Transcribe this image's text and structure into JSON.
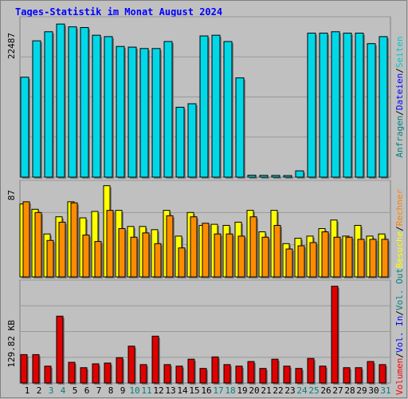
{
  "title": "Tages-Statistik im Monat August 2024",
  "colors": {
    "background": "#c0c0c0",
    "frame": "#808080",
    "title": "#0000ff",
    "grid": "#888888",
    "anfragen": "#00d8e8",
    "dateien": "#008c8c",
    "seiten": "#00e0f0",
    "besuche": "#ffff00",
    "rechner": "#ff8c00",
    "volumen": "#e00000",
    "label_blue": "#0000ff",
    "label_teal": "#008080",
    "label_red": "#ff0000",
    "label_orange": "#ff8000",
    "weekend_day": "#008080",
    "weekday_day": "#000000"
  },
  "chart_data": [
    {
      "type": "bar",
      "panel": "requests",
      "ylabel_max": "22487",
      "ymax": 22487,
      "right_labels": [
        {
          "text": "Anfragen",
          "color": "#008080"
        },
        {
          "text": "/",
          "color": "#000000"
        },
        {
          "text": "Dateien",
          "color": "#0000ff"
        },
        {
          "text": "/",
          "color": "#000000"
        },
        {
          "text": "Seiten",
          "color": "#00c8c8"
        }
      ],
      "categories": [
        "1",
        "2",
        "3",
        "4",
        "5",
        "6",
        "7",
        "8",
        "9",
        "10",
        "11",
        "12",
        "13",
        "14",
        "15",
        "16",
        "17",
        "18",
        "19",
        "20",
        "21",
        "22",
        "23",
        "24",
        "25",
        "26",
        "27",
        "28",
        "29",
        "30",
        "31"
      ],
      "series": [
        {
          "name": "Anfragen",
          "values": [
            14300,
            19500,
            20800,
            21900,
            21500,
            21400,
            20300,
            20100,
            18700,
            18600,
            18400,
            18400,
            19400,
            10000,
            10500,
            20200,
            20300,
            19400,
            14200,
            280,
            260,
            250,
            230,
            900,
            20600,
            20600,
            20800,
            20600,
            20600,
            19100,
            20100
          ]
        },
        {
          "name": "Dateien",
          "values": [
            14300,
            19500,
            20800,
            21900,
            21500,
            21400,
            20300,
            20100,
            18700,
            18600,
            18400,
            18400,
            19400,
            10000,
            10500,
            20200,
            20300,
            19400,
            14200,
            280,
            260,
            250,
            230,
            900,
            20600,
            20600,
            20800,
            20600,
            20600,
            19100,
            20100
          ]
        }
      ]
    },
    {
      "type": "bar",
      "panel": "visits",
      "ylabel_max": "87",
      "ymax": 87,
      "right_labels": [
        {
          "text": "Besuche",
          "color": "#ffff00"
        },
        {
          "text": "/",
          "color": "#000000"
        },
        {
          "text": "Rechner",
          "color": "#ff8000"
        }
      ],
      "categories": [
        "1",
        "2",
        "3",
        "4",
        "5",
        "6",
        "7",
        "8",
        "9",
        "10",
        "11",
        "12",
        "13",
        "14",
        "15",
        "16",
        "17",
        "18",
        "19",
        "20",
        "21",
        "22",
        "23",
        "24",
        "25",
        "26",
        "27",
        "28",
        "29",
        "30",
        "31"
      ],
      "series": [
        {
          "name": "Besuche",
          "values": [
            68,
            63,
            40,
            56,
            70,
            55,
            61,
            85,
            62,
            47,
            47,
            44,
            62,
            38,
            60,
            48,
            49,
            48,
            51,
            62,
            42,
            62,
            31,
            36,
            38,
            45,
            53,
            38,
            48,
            38,
            40
          ]
        },
        {
          "name": "Rechner",
          "values": [
            70,
            60,
            34,
            51,
            69,
            39,
            33,
            62,
            45,
            37,
            41,
            31,
            57,
            27,
            56,
            50,
            40,
            40,
            38,
            56,
            37,
            48,
            26,
            29,
            32,
            42,
            37,
            37,
            35,
            35,
            35
          ]
        }
      ]
    },
    {
      "type": "bar",
      "panel": "volume",
      "ylabel_max": "129.82 KB",
      "ymax": 129.82,
      "right_labels": [
        {
          "text": "Volumen",
          "color": "#ff0000"
        },
        {
          "text": "/",
          "color": "#000000"
        },
        {
          "text": "Vol. In",
          "color": "#0000ff"
        },
        {
          "text": "/",
          "color": "#000000"
        },
        {
          "text": "Vol. Out",
          "color": "#008080"
        }
      ],
      "categories": [
        "1",
        "2",
        "3",
        "4",
        "5",
        "6",
        "7",
        "8",
        "9",
        "10",
        "11",
        "12",
        "13",
        "14",
        "15",
        "16",
        "17",
        "18",
        "19",
        "20",
        "21",
        "22",
        "23",
        "24",
        "25",
        "26",
        "27",
        "28",
        "29",
        "30",
        "31"
      ],
      "series": [
        {
          "name": "Volumen",
          "values": [
            37,
            37,
            22,
            87,
            27,
            20,
            25,
            26,
            33,
            48,
            24,
            61,
            24,
            22,
            31,
            19,
            34,
            24,
            22,
            28,
            19,
            31,
            22,
            19,
            32,
            22,
            126,
            20,
            20,
            28,
            24
          ]
        }
      ]
    }
  ],
  "x_axis": {
    "days": [
      "1",
      "2",
      "3",
      "4",
      "5",
      "6",
      "7",
      "8",
      "9",
      "10",
      "11",
      "12",
      "13",
      "14",
      "15",
      "16",
      "17",
      "18",
      "19",
      "20",
      "21",
      "22",
      "23",
      "24",
      "25",
      "26",
      "27",
      "28",
      "29",
      "30",
      "31"
    ],
    "weekend": [
      3,
      4,
      10,
      11,
      17,
      18,
      24,
      25,
      31
    ]
  }
}
